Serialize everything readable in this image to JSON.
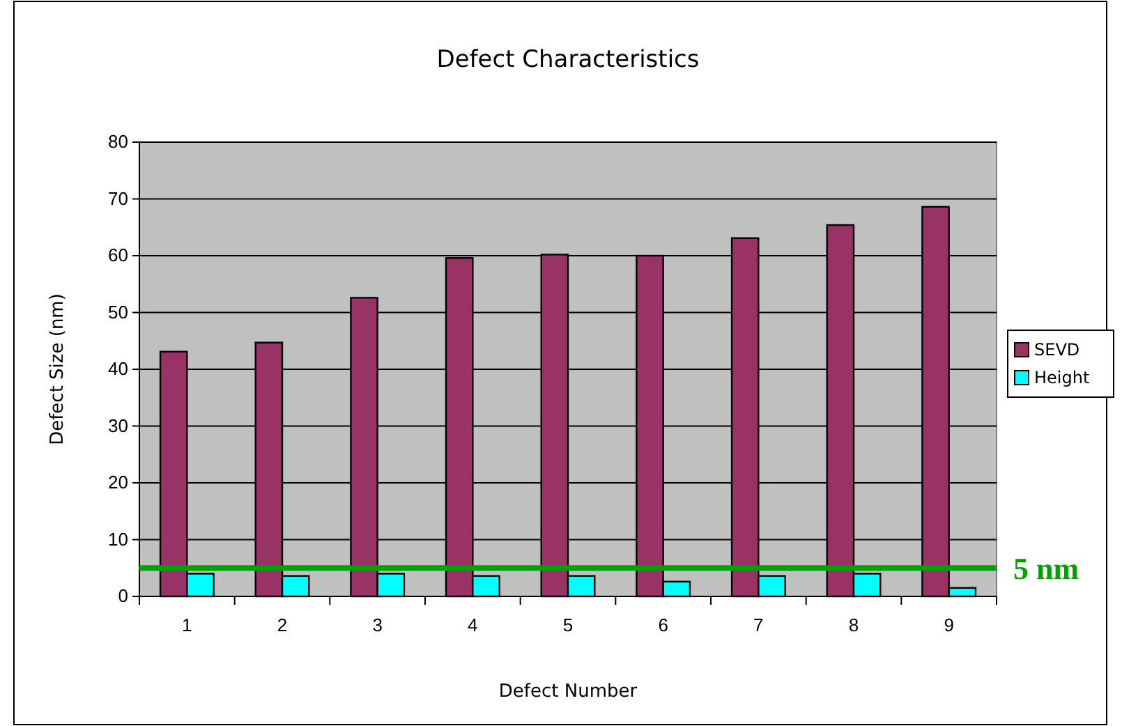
{
  "chart_data": {
    "type": "bar",
    "title": "Defect Characteristics",
    "xlabel": "Defect Number",
    "ylabel": "Defect Size (nm)",
    "categories": [
      "1",
      "2",
      "3",
      "4",
      "5",
      "6",
      "7",
      "8",
      "9"
    ],
    "series": [
      {
        "name": "SEVD",
        "color": "#993366",
        "values": [
          43.1,
          44.7,
          52.6,
          59.6,
          60.2,
          60.0,
          63.1,
          65.4,
          68.6
        ]
      },
      {
        "name": "Height",
        "color": "#00ffff",
        "values": [
          4.0,
          3.6,
          4.0,
          3.6,
          3.6,
          2.6,
          3.6,
          4.0,
          1.5
        ]
      }
    ],
    "ylim": [
      0,
      80
    ],
    "yticks": [
      0,
      10,
      20,
      30,
      40,
      50,
      60,
      70,
      80
    ],
    "grid": "y",
    "legend": "right",
    "ref_lines": [
      {
        "axis": "y",
        "value": 5,
        "label": "5 nm",
        "color": "#00a000"
      }
    ]
  }
}
